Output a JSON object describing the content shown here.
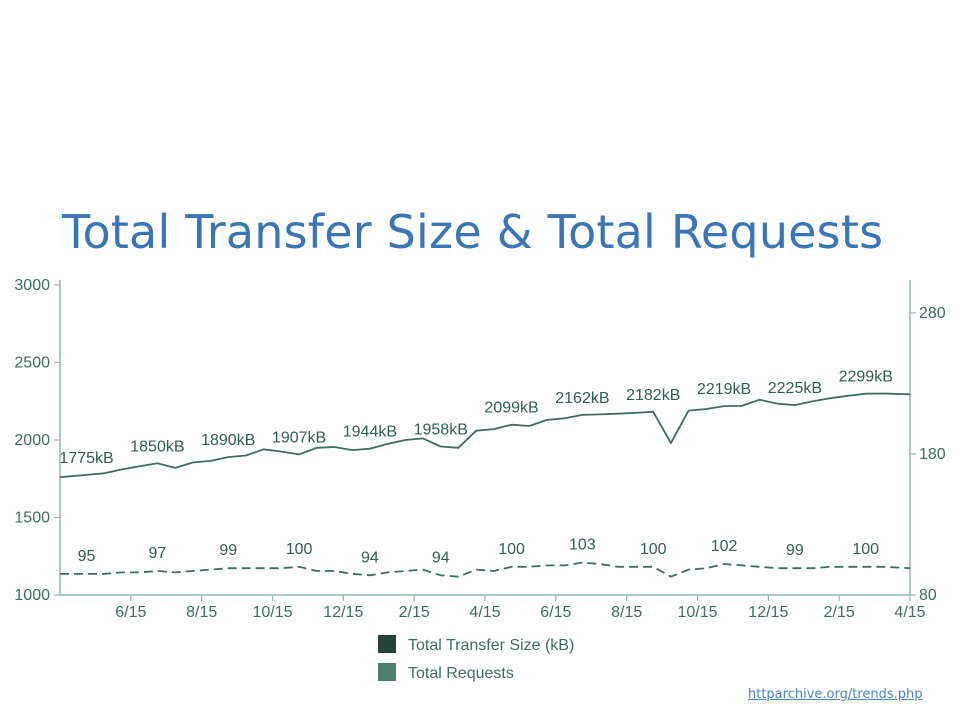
{
  "slide": {
    "title": "Total Transfer Size & Total Requests",
    "source_link": "httparchive.org/trends.php"
  },
  "colors": {
    "title": "#3a76b7",
    "axis": "#93b8ac",
    "line": "#3d6e60",
    "legend_size": "#27423b",
    "legend_requests": "#4b7f6e",
    "link": "#4a86c5"
  },
  "chart_data": {
    "type": "line",
    "title": "",
    "x_tick_labels": [
      "6/15",
      "8/15",
      "10/15",
      "12/15",
      "2/15",
      "4/15",
      "6/15",
      "8/15",
      "10/15",
      "12/15",
      "2/15",
      "4/15"
    ],
    "y_left": {
      "range": [
        1000,
        3000
      ],
      "ticks": [
        1000,
        1500,
        2000,
        2500,
        3000
      ]
    },
    "y_right": {
      "range": [
        80,
        300
      ],
      "ticks": [
        80,
        180,
        280
      ]
    },
    "legend": {
      "position": "bottom-center"
    },
    "grid": false,
    "series": [
      {
        "name": "Total Transfer Size (kB)",
        "axis": "left",
        "style": "solid",
        "values": [
          1760,
          1775,
          1785,
          1810,
          1830,
          1850,
          1820,
          1855,
          1865,
          1890,
          1900,
          1940,
          1925,
          1907,
          1950,
          1955,
          1935,
          1944,
          1975,
          2000,
          2010,
          1958,
          1950,
          2060,
          2070,
          2099,
          2090,
          2130,
          2140,
          2162,
          2165,
          2170,
          2175,
          2182,
          1980,
          2190,
          2200,
          2219,
          2220,
          2260,
          2235,
          2225,
          2250,
          2270,
          2285,
          2299,
          2300,
          2295
        ],
        "point_labels": [
          {
            "index": 1,
            "text": "1775kB"
          },
          {
            "index": 5,
            "text": "1850kB"
          },
          {
            "index": 9,
            "text": "1890kB"
          },
          {
            "index": 13,
            "text": "1907kB"
          },
          {
            "index": 17,
            "text": "1944kB"
          },
          {
            "index": 21,
            "text": "1958kB"
          },
          {
            "index": 25,
            "text": "2099kB"
          },
          {
            "index": 29,
            "text": "2162kB"
          },
          {
            "index": 33,
            "text": "2182kB"
          },
          {
            "index": 37,
            "text": "2219kB"
          },
          {
            "index": 41,
            "text": "2225kB"
          },
          {
            "index": 45,
            "text": "2299kB"
          }
        ]
      },
      {
        "name": "Total Requests",
        "axis": "right",
        "style": "dashed",
        "values": [
          95,
          95,
          95,
          96,
          96,
          97,
          96,
          97,
          98,
          99,
          99,
          99,
          99,
          100,
          97,
          97,
          95,
          94,
          96,
          97,
          98,
          94,
          93,
          98,
          97,
          100,
          100,
          101,
          101,
          103,
          102,
          100,
          100,
          100,
          93,
          98,
          99,
          102,
          101,
          100,
          99,
          99,
          99,
          100,
          100,
          100,
          100,
          99
        ],
        "point_labels": [
          {
            "index": 1,
            "text": "95"
          },
          {
            "index": 5,
            "text": "97"
          },
          {
            "index": 9,
            "text": "99"
          },
          {
            "index": 13,
            "text": "100"
          },
          {
            "index": 17,
            "text": "94"
          },
          {
            "index": 21,
            "text": "94"
          },
          {
            "index": 25,
            "text": "100"
          },
          {
            "index": 29,
            "text": "103"
          },
          {
            "index": 33,
            "text": "100"
          },
          {
            "index": 37,
            "text": "102"
          },
          {
            "index": 41,
            "text": "99"
          },
          {
            "index": 45,
            "text": "100"
          }
        ]
      }
    ]
  }
}
